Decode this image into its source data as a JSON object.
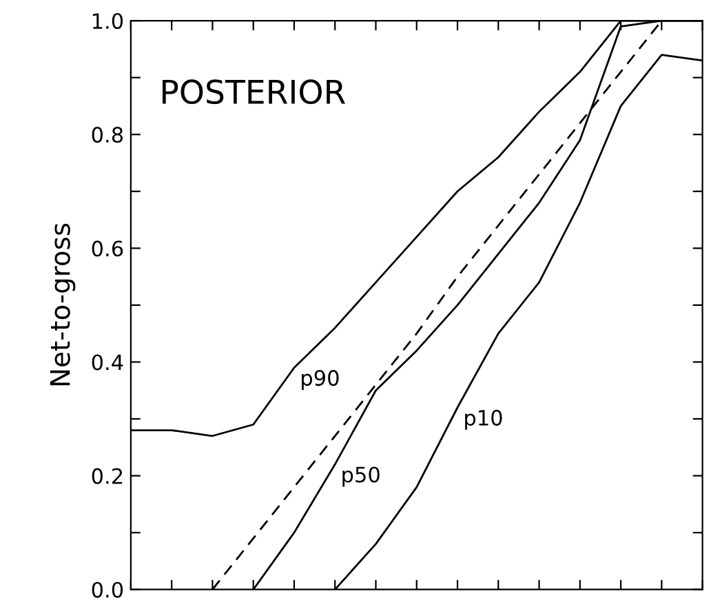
{
  "chart_data": {
    "type": "line",
    "annotations": [
      "POSTERIOR"
    ],
    "ylabel": "Net-to-gross",
    "categories": [
      null,
      null,
      null,
      null,
      null,
      null,
      null,
      null,
      null,
      null,
      null,
      null,
      null,
      null,
      null
    ],
    "series": [
      {
        "name": "p90",
        "color": "#000000",
        "values": [
          0.28,
          0.28,
          0.27,
          0.29,
          0.39,
          0.46,
          0.54,
          0.62,
          0.7,
          0.76,
          0.84,
          0.91,
          1.0,
          1.0,
          1.0
        ]
      },
      {
        "name": "p50",
        "color": "#000000",
        "values": [
          null,
          null,
          null,
          0.0,
          0.1,
          0.22,
          0.35,
          0.42,
          0.5,
          0.59,
          0.68,
          0.79,
          0.99,
          1.0,
          1.0
        ]
      },
      {
        "name": "p10",
        "color": "#000000",
        "values": [
          null,
          null,
          null,
          null,
          null,
          0.0,
          0.08,
          0.18,
          0.32,
          0.45,
          0.54,
          0.68,
          0.85,
          0.94,
          0.93
        ]
      },
      {
        "color": "#000000",
        "line_style": "dashed",
        "values": [
          null,
          null,
          0.0,
          0.09,
          0.18,
          0.27,
          0.36,
          0.45,
          0.55,
          0.64,
          0.73,
          0.82,
          0.91,
          1.0,
          null
        ]
      }
    ],
    "ylim": [
      0.0,
      1.0
    ],
    "yticks": [
      {
        "value": 0.0,
        "label": "0.0"
      },
      {
        "value": 0.1,
        "label": null
      },
      0.2,
      {
        "value": 0.3,
        "label": null
      },
      0.4,
      {
        "value": 0.5,
        "label": null
      },
      0.6,
      {
        "value": 0.7,
        "label": null
      },
      0.8,
      {
        "value": 0.9,
        "label": null
      },
      {
        "value": 1.0,
        "label": "1.0"
      }
    ],
    "tick_labels": "y",
    "grid": false,
    "legend": false,
    "marker": "none"
  }
}
